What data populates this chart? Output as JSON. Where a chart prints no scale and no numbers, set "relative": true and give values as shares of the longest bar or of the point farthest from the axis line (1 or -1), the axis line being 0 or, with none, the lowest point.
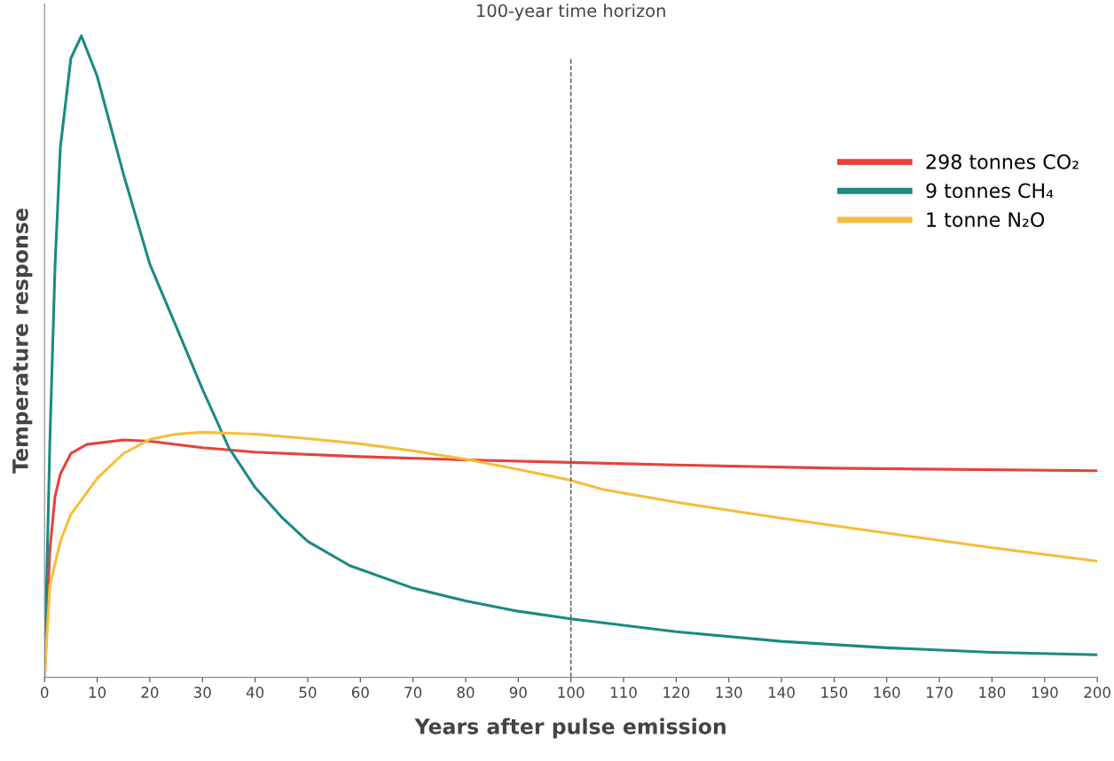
{
  "chart_data": {
    "type": "line",
    "relative": true,
    "xlabel": "Years after pulse emission",
    "ylabel": "Temperature response",
    "xlim": [
      0,
      200
    ],
    "xticks": [
      0,
      10,
      20,
      30,
      40,
      50,
      60,
      70,
      80,
      90,
      100,
      110,
      120,
      130,
      140,
      150,
      160,
      170,
      180,
      190,
      200
    ],
    "legend": "right",
    "grid": false,
    "marker": "none",
    "line_style": "solid",
    "ref_lines": [
      {
        "axis": "x",
        "value": 100,
        "label": "100-year time horizon",
        "color": "#555555",
        "line_style": "dashed"
      }
    ],
    "series": [
      {
        "name": "298 tonnes CO₂",
        "color": "#e8413c",
        "x": [
          0,
          1,
          2,
          3,
          5,
          8,
          15,
          20,
          30,
          40,
          60,
          80,
          100,
          120,
          150,
          200
        ],
        "values": [
          0,
          0.198,
          0.282,
          0.317,
          0.349,
          0.363,
          0.37,
          0.368,
          0.358,
          0.351,
          0.344,
          0.339,
          0.335,
          0.331,
          0.326,
          0.322
        ]
      },
      {
        "name": "9 tonnes CH₄",
        "color": "#1a8a82",
        "x": [
          0,
          1,
          2,
          3,
          5,
          7,
          10,
          15,
          20,
          25,
          30,
          35,
          40,
          45,
          50,
          58,
          70,
          80,
          90,
          100,
          120,
          140,
          160,
          180,
          200
        ],
        "values": [
          0,
          0.365,
          0.644,
          0.826,
          0.965,
          1,
          0.937,
          0.784,
          0.644,
          0.547,
          0.449,
          0.358,
          0.296,
          0.25,
          0.212,
          0.174,
          0.139,
          0.119,
          0.103,
          0.091,
          0.071,
          0.056,
          0.046,
          0.039,
          0.035
        ]
      },
      {
        "name": "1 tonne N₂O",
        "color": "#f5be3a",
        "x": [
          0,
          1,
          3,
          5,
          10,
          15,
          20,
          25,
          30,
          40,
          50,
          60,
          70,
          80,
          90,
          100,
          106,
          120,
          140,
          160,
          180,
          200
        ],
        "values": [
          0,
          0.142,
          0.212,
          0.254,
          0.31,
          0.349,
          0.371,
          0.379,
          0.382,
          0.379,
          0.372,
          0.364,
          0.353,
          0.34,
          0.324,
          0.307,
          0.293,
          0.273,
          0.248,
          0.225,
          0.202,
          0.181
        ]
      }
    ]
  }
}
